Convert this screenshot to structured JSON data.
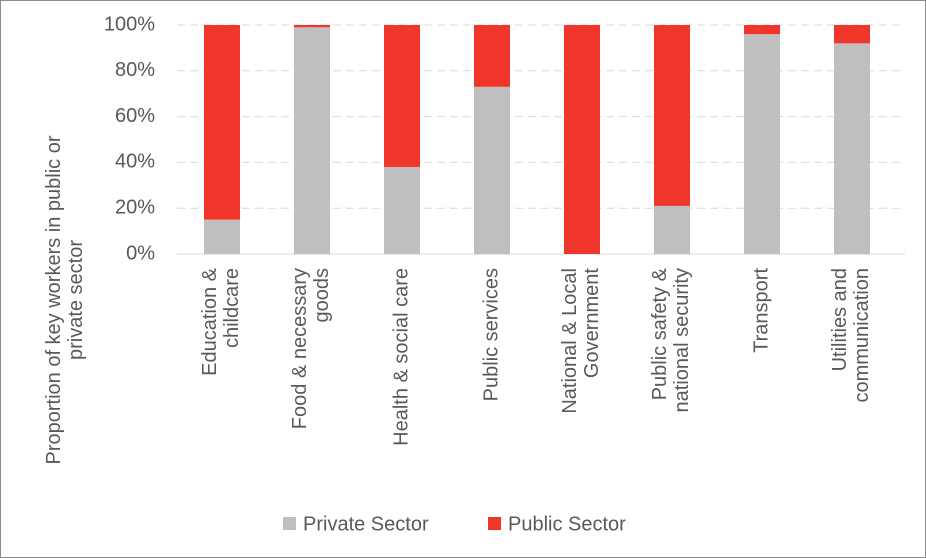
{
  "chart_data": {
    "type": "stacked_bar",
    "y_label": "Proportion of key workers in public or\nprivate sector",
    "categories": [
      "Education &\nchildcare",
      "Food & necessary\ngoods",
      "Health & social care",
      "Public services",
      "National & Local\nGovernment",
      "Public safety &\nnational security",
      "Transport",
      "Utilities and\ncommunication"
    ],
    "series": [
      {
        "name": "Private Sector",
        "color": "#bfbfbf",
        "values": [
          15,
          99,
          38,
          73,
          0,
          21,
          96,
          92
        ]
      },
      {
        "name": "Public Sector",
        "color": "#f0352a",
        "values": [
          85,
          1,
          62,
          27,
          100,
          79,
          4,
          8
        ]
      }
    ],
    "ylim": [
      0,
      100
    ],
    "yticks": [
      {
        "value": 0,
        "label": "0%"
      },
      {
        "value": 20,
        "label": "20%"
      },
      {
        "value": 40,
        "label": "40%"
      },
      {
        "value": 60,
        "label": "60%"
      },
      {
        "value": 80,
        "label": "80%"
      },
      {
        "value": 100,
        "label": "100%"
      }
    ],
    "grid": true,
    "legend": "bottom"
  }
}
